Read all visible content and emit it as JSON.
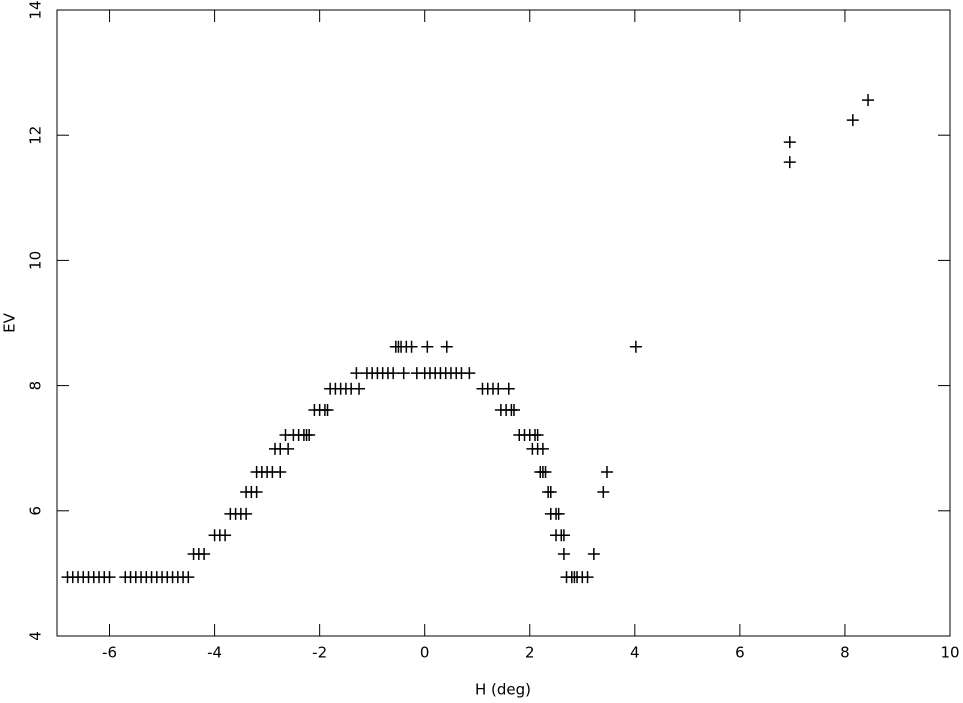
{
  "chart_data": {
    "type": "scatter",
    "xlabel": "H (deg)",
    "ylabel": "EV",
    "color": "#000000",
    "xlim": [
      -7,
      10
    ],
    "ylim": [
      4,
      14
    ],
    "xticks": [
      -6,
      -4,
      -2,
      0,
      2,
      4,
      6,
      8,
      10
    ],
    "yticks": [
      4,
      6,
      8,
      10,
      12,
      14
    ],
    "x": [
      -6.8,
      -6.7,
      -6.6,
      -6.5,
      -6.4,
      -6.3,
      -6.2,
      -6.1,
      -6.0,
      -5.7,
      -5.6,
      -5.5,
      -5.4,
      -5.3,
      -5.2,
      -5.1,
      -5.0,
      -4.9,
      -4.8,
      -4.7,
      -4.6,
      -4.5,
      2.7,
      2.8,
      2.85,
      2.9,
      3.0,
      3.1,
      -4.4,
      -4.3,
      -4.2,
      2.65,
      3.22,
      -4.0,
      -3.9,
      -3.8,
      2.5,
      2.6,
      2.65,
      -3.7,
      -3.6,
      -3.5,
      -3.4,
      2.4,
      2.5,
      2.55,
      -3.4,
      -3.3,
      -3.2,
      2.35,
      2.4,
      3.4,
      -3.2,
      -3.1,
      -3.0,
      -2.9,
      -2.75,
      2.2,
      2.25,
      2.3,
      3.47,
      -2.85,
      -2.75,
      -2.6,
      2.05,
      2.15,
      2.25,
      -2.65,
      -2.5,
      -2.4,
      -2.3,
      -2.25,
      -2.2,
      1.8,
      1.9,
      2.0,
      2.1,
      2.15,
      -2.1,
      -2.0,
      -1.9,
      -1.85,
      1.45,
      1.55,
      1.65,
      1.7,
      -1.8,
      -1.7,
      -1.6,
      -1.5,
      -1.4,
      -1.25,
      1.1,
      1.2,
      1.3,
      1.4,
      1.6,
      -1.3,
      -1.1,
      -1.0,
      -0.9,
      -0.8,
      -0.7,
      -0.6,
      -0.4,
      -0.15,
      0,
      0.1,
      0.2,
      0.3,
      0.4,
      0.5,
      0.6,
      0.7,
      0.85,
      -0.55,
      -0.5,
      -0.45,
      -0.35,
      -0.25,
      0.05,
      0.42,
      4.02,
      6.95,
      6.95,
      8.15,
      8.44
    ],
    "y": [
      4.94,
      4.94,
      4.94,
      4.94,
      4.94,
      4.94,
      4.94,
      4.94,
      4.94,
      4.94,
      4.94,
      4.94,
      4.94,
      4.94,
      4.94,
      4.94,
      4.94,
      4.94,
      4.94,
      4.94,
      4.94,
      4.94,
      4.94,
      4.94,
      4.94,
      4.94,
      4.94,
      4.94,
      5.31,
      5.31,
      5.31,
      5.31,
      5.31,
      5.61,
      5.61,
      5.61,
      5.61,
      5.61,
      5.61,
      5.95,
      5.95,
      5.95,
      5.95,
      5.95,
      5.95,
      5.95,
      6.3,
      6.3,
      6.3,
      6.3,
      6.3,
      6.3,
      6.62,
      6.62,
      6.62,
      6.62,
      6.62,
      6.62,
      6.62,
      6.62,
      6.62,
      6.99,
      6.99,
      6.99,
      6.99,
      6.99,
      6.99,
      7.21,
      7.21,
      7.21,
      7.21,
      7.21,
      7.21,
      7.21,
      7.21,
      7.21,
      7.21,
      7.21,
      7.61,
      7.61,
      7.61,
      7.61,
      7.61,
      7.61,
      7.61,
      7.61,
      7.95,
      7.95,
      7.95,
      7.95,
      7.95,
      7.95,
      7.95,
      7.95,
      7.95,
      7.95,
      7.95,
      8.2,
      8.2,
      8.2,
      8.2,
      8.2,
      8.2,
      8.2,
      8.2,
      8.2,
      8.2,
      8.2,
      8.2,
      8.2,
      8.2,
      8.2,
      8.2,
      8.2,
      8.2,
      8.62,
      8.62,
      8.62,
      8.62,
      8.62,
      8.62,
      8.62,
      8.62,
      11.57,
      11.89,
      12.24,
      12.56
    ]
  }
}
